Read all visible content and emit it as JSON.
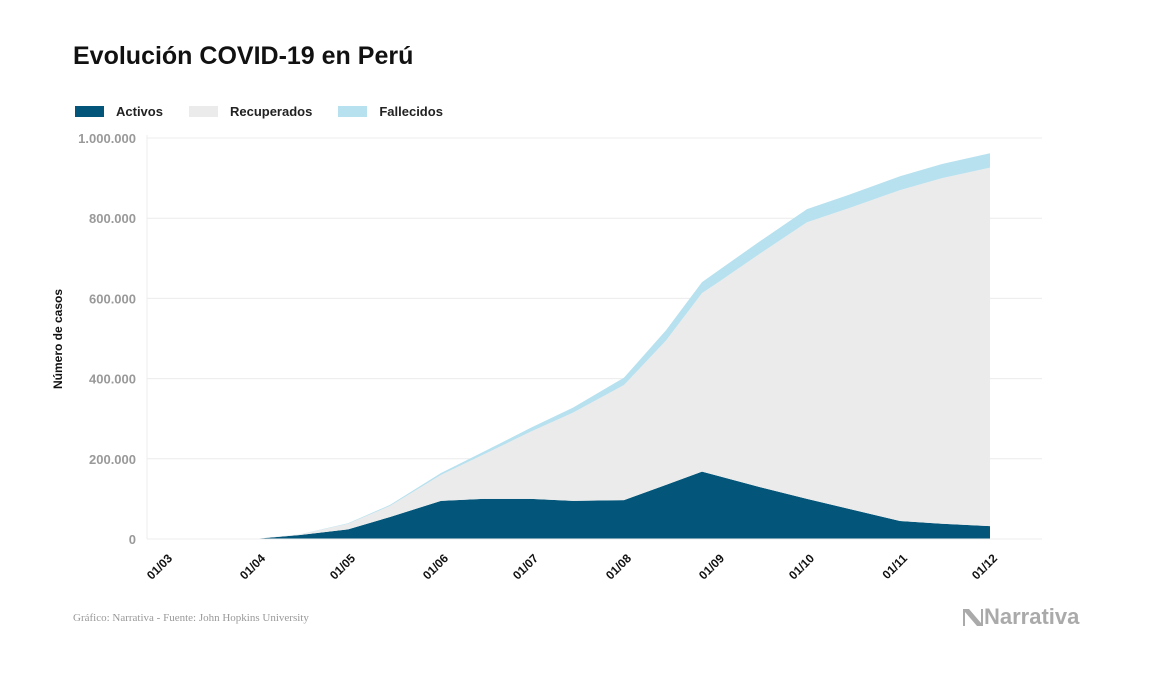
{
  "chart_data": {
    "type": "area",
    "stacked": true,
    "title": "Evolución COVID-19 en Perú",
    "xlabel": "",
    "ylabel": "Número de casos",
    "ylim": [
      0,
      1000000
    ],
    "yticks": [
      0,
      200000,
      400000,
      600000,
      800000,
      1000000
    ],
    "ytick_labels": [
      "0",
      "200.000",
      "400.000",
      "600.000",
      "800.000",
      "1.000.000"
    ],
    "xtick_labels": [
      "01/03",
      "01/04",
      "01/05",
      "01/06",
      "01/07",
      "01/08",
      "01/09",
      "01/10",
      "01/11",
      "01/12"
    ],
    "grid": "horizontal",
    "legend_position": "top-left",
    "x": [
      "01/03",
      "15/03",
      "01/04",
      "15/04",
      "01/05",
      "15/05",
      "01/06",
      "15/06",
      "01/07",
      "15/07",
      "01/08",
      "15/08",
      "27/08",
      "01/09",
      "15/09",
      "01/10",
      "15/10",
      "01/11",
      "15/11",
      "01/12"
    ],
    "series": [
      {
        "name": "Activos",
        "color": "#03567a",
        "values": [
          0,
          40,
          1000,
          10000,
          24000,
          55000,
          95000,
          100000,
          100000,
          95000,
          97000,
          135000,
          168000,
          158000,
          130000,
          100000,
          75000,
          45000,
          38000,
          32000
        ]
      },
      {
        "name": "Recuperados",
        "color": "#ebebeb",
        "values": [
          0,
          0,
          0,
          1500,
          14000,
          27500,
          65000,
          110000,
          168000,
          220000,
          287000,
          360000,
          445000,
          480000,
          580000,
          690000,
          750000,
          825000,
          862000,
          894000
        ]
      },
      {
        "name": "Fallecidos",
        "color": "#b7e1ef",
        "values": [
          0,
          0,
          30,
          300,
          1200,
          2500,
          4600,
          6900,
          9700,
          12600,
          18400,
          25600,
          27600,
          29000,
          31000,
          32600,
          33600,
          34700,
          35300,
          35900
        ]
      }
    ]
  },
  "footer": {
    "source": "Gráfico: Narrativa - Fuente: John Hopkins University",
    "logo": "Narrativa"
  }
}
